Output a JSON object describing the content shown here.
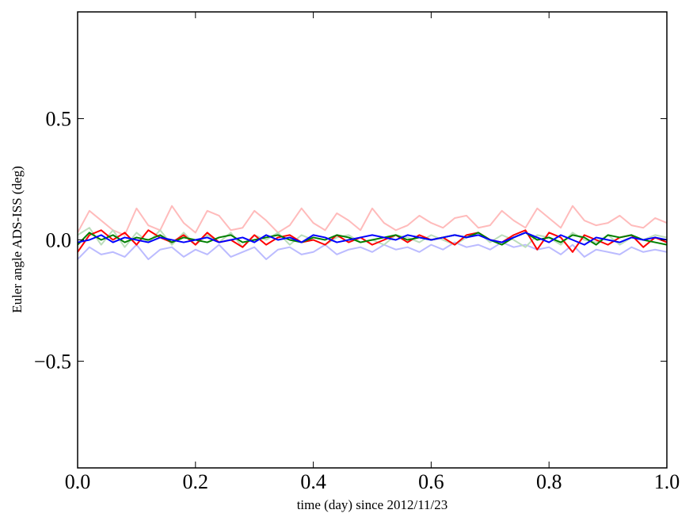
{
  "chart_data": {
    "type": "line",
    "xlabel": "time (day) since 2012/11/23",
    "ylabel": "Euler angle ADS-ISS (deg)",
    "xlim": [
      0,
      1
    ],
    "ylim": [
      -0.94,
      0.94
    ],
    "xticks": [
      {
        "value": 0,
        "label": "0.0"
      },
      {
        "value": 0.2,
        "label": "0.2"
      },
      {
        "value": 0.4,
        "label": "0.4"
      },
      {
        "value": 0.6,
        "label": "0.6"
      },
      {
        "value": 0.8,
        "label": "0.8"
      },
      {
        "value": 1,
        "label": "1.0"
      }
    ],
    "yticks": [
      {
        "value": -0.5,
        "label": "−0.5"
      },
      {
        "value": 0,
        "label": "0.0"
      },
      {
        "value": 0.5,
        "label": "0.5"
      }
    ],
    "grid": false,
    "x": [
      0,
      0.02,
      0.04,
      0.06,
      0.08,
      0.1,
      0.12,
      0.14,
      0.16,
      0.18,
      0.2,
      0.22,
      0.24,
      0.26,
      0.28,
      0.3,
      0.32,
      0.34,
      0.36,
      0.38,
      0.4,
      0.42,
      0.44,
      0.46,
      0.48,
      0.5,
      0.52,
      0.54,
      0.56,
      0.58,
      0.6,
      0.62,
      0.64,
      0.66,
      0.68,
      0.7,
      0.72,
      0.74,
      0.76,
      0.78,
      0.8,
      0.82,
      0.84,
      0.86,
      0.88,
      0.9,
      0.92,
      0.94,
      0.96,
      0.98,
      1.0
    ],
    "series": [
      {
        "color": "#ffbbbb",
        "values": [
          0.03,
          0.12,
          0.08,
          0.04,
          0.02,
          0.13,
          0.06,
          0.04,
          0.14,
          0.07,
          0.03,
          0.12,
          0.1,
          0.04,
          0.05,
          0.12,
          0.08,
          0.03,
          0.06,
          0.13,
          0.07,
          0.04,
          0.11,
          0.08,
          0.04,
          0.13,
          0.07,
          0.04,
          0.06,
          0.1,
          0.07,
          0.05,
          0.09,
          0.1,
          0.05,
          0.06,
          0.12,
          0.08,
          0.05,
          0.13,
          0.09,
          0.05,
          0.14,
          0.08,
          0.06,
          0.07,
          0.1,
          0.06,
          0.05,
          0.09,
          0.07
        ]
      },
      {
        "color": "#bbbbff",
        "values": [
          -0.08,
          -0.03,
          -0.06,
          -0.05,
          -0.07,
          -0.02,
          -0.08,
          -0.04,
          -0.03,
          -0.07,
          -0.04,
          -0.06,
          -0.02,
          -0.07,
          -0.05,
          -0.03,
          -0.08,
          -0.04,
          -0.03,
          -0.06,
          -0.05,
          -0.02,
          -0.06,
          -0.04,
          -0.03,
          -0.05,
          -0.02,
          -0.04,
          -0.03,
          -0.05,
          -0.02,
          -0.04,
          -0.01,
          -0.03,
          -0.02,
          -0.04,
          -0.01,
          -0.03,
          -0.02,
          -0.04,
          -0.03,
          -0.06,
          -0.02,
          -0.07,
          -0.04,
          -0.05,
          -0.06,
          -0.03,
          -0.05,
          -0.04,
          -0.05
        ]
      },
      {
        "color": "#bbddbb",
        "values": [
          0.02,
          0.05,
          -0.02,
          0.04,
          -0.03,
          0.03,
          -0.01,
          0.04,
          -0.02,
          0.03,
          -0.02,
          0.02,
          -0.01,
          0.03,
          -0.03,
          0.02,
          0.0,
          0.03,
          -0.02,
          0.02,
          0.0,
          -0.02,
          0.01,
          0.02,
          -0.01,
          0.0,
          -0.02,
          0.02,
          0.01,
          -0.01,
          0.02,
          0.0,
          -0.02,
          0.01,
          0.03,
          -0.01,
          0.02,
          0.0,
          -0.03,
          0.02,
          0.01,
          -0.02,
          0.03,
          0.0,
          -0.01,
          0.02,
          -0.02,
          0.01,
          0.0,
          0.02,
          0.01
        ]
      },
      {
        "color": "#ff0000",
        "values": [
          -0.05,
          0.02,
          0.04,
          0.0,
          0.03,
          -0.02,
          0.04,
          0.01,
          -0.01,
          0.02,
          -0.02,
          0.03,
          -0.01,
          0.0,
          -0.03,
          0.02,
          -0.02,
          0.01,
          0.02,
          -0.01,
          0.0,
          -0.02,
          0.02,
          -0.01,
          0.01,
          -0.02,
          0.0,
          0.02,
          -0.01,
          0.02,
          0.0,
          0.01,
          -0.02,
          0.02,
          0.03,
          0.0,
          -0.01,
          0.02,
          0.04,
          -0.04,
          0.03,
          0.01,
          -0.05,
          0.02,
          0.0,
          -0.02,
          0.01,
          0.02,
          -0.03,
          0.01,
          -0.01
        ]
      },
      {
        "color": "#008000",
        "values": [
          -0.02,
          0.03,
          0.0,
          0.02,
          -0.01,
          0.01,
          0.0,
          0.02,
          -0.01,
          0.01,
          0.0,
          -0.01,
          0.01,
          0.02,
          -0.01,
          0.0,
          0.01,
          0.02,
          0.0,
          -0.01,
          0.01,
          0.0,
          0.02,
          0.01,
          -0.01,
          0.0,
          0.01,
          0.02,
          0.0,
          0.01,
          0.0,
          0.01,
          0.02,
          0.01,
          0.03,
          0.0,
          -0.02,
          0.01,
          0.03,
          0.0,
          0.01,
          -0.01,
          0.02,
          0.01,
          -0.02,
          0.02,
          0.01,
          0.02,
          0.0,
          -0.01,
          -0.02
        ]
      },
      {
        "color": "#0000ff",
        "values": [
          -0.01,
          0.0,
          0.02,
          -0.01,
          0.01,
          0.0,
          -0.01,
          0.01,
          0.0,
          -0.01,
          0.0,
          0.01,
          -0.01,
          0.0,
          0.01,
          -0.01,
          0.02,
          0.0,
          0.01,
          -0.01,
          0.02,
          0.01,
          -0.01,
          0.0,
          0.01,
          0.02,
          0.01,
          0.0,
          0.02,
          0.01,
          0.0,
          0.01,
          0.02,
          0.01,
          0.02,
          0.0,
          -0.01,
          0.01,
          0.03,
          0.01,
          -0.01,
          0.02,
          0.0,
          -0.02,
          0.01,
          0.0,
          -0.01,
          0.01,
          0.0,
          0.01,
          0.0
        ]
      }
    ]
  }
}
